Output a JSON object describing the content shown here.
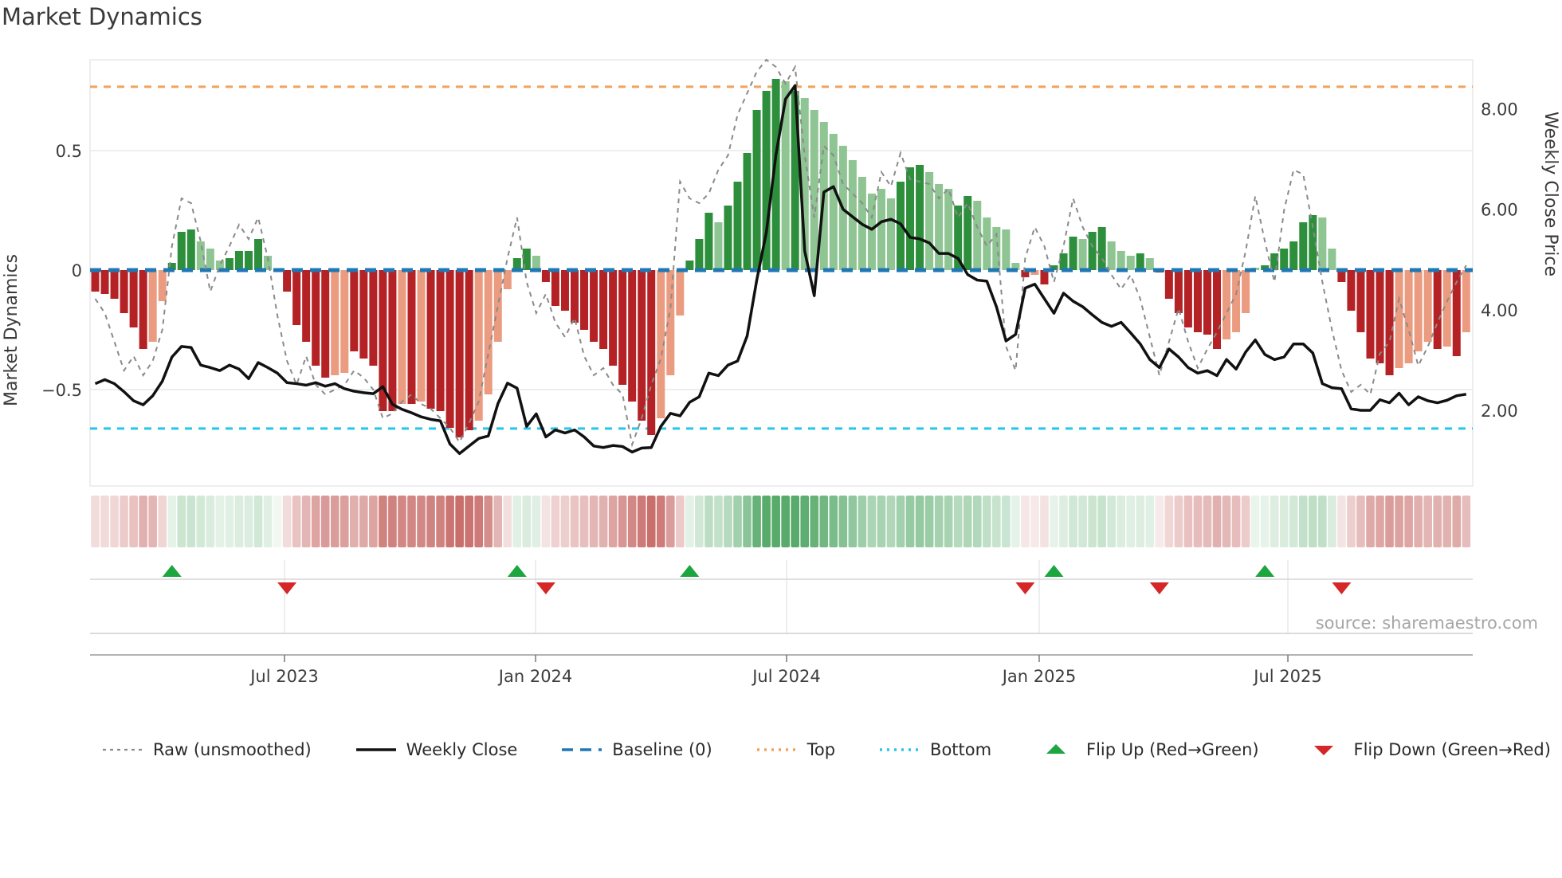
{
  "chart_data": {
    "type": "bar",
    "title": "Market Dynamics",
    "source_note": "source: sharemaestro.com",
    "frequency": "weekly",
    "left_axis": {
      "label": "Market Dynamics",
      "ticks": [
        {
          "label": "0.5",
          "value": 0.5
        },
        {
          "label": "0",
          "value": 0.0
        },
        {
          "label": "−0.5",
          "value": -0.5
        }
      ],
      "ylim": [
        -0.9,
        0.88
      ],
      "grid": "horizontal"
    },
    "right_axis": {
      "label": "Weekly Close Price",
      "ticks": [
        {
          "label": "8.00",
          "value": 8.0
        },
        {
          "label": "6.00",
          "value": 6.0
        },
        {
          "label": "4.00",
          "value": 4.0
        },
        {
          "label": "2.00",
          "value": 2.0
        }
      ],
      "ylim": [
        0.5,
        8.97
      ]
    },
    "x_ticks": [
      {
        "label": "Jul 2023",
        "week": 19.74
      },
      {
        "label": "Jan 2024",
        "week": 45.93
      },
      {
        "label": "Jul 2024",
        "week": 72.11
      },
      {
        "label": "Jan 2025",
        "week": 98.46
      },
      {
        "label": "Jul 2025",
        "week": 124.4
      }
    ],
    "baseline": 0,
    "top_level": 0.767,
    "bottom_level": -0.663,
    "series": {
      "market_dynamics": [
        -0.09,
        -0.1,
        -0.12,
        -0.18,
        -0.24,
        -0.33,
        -0.3,
        -0.13,
        0.03,
        0.16,
        0.17,
        0.12,
        0.09,
        0.04,
        0.05,
        0.08,
        0.08,
        0.13,
        0.06,
        0.0,
        -0.09,
        -0.23,
        -0.3,
        -0.4,
        -0.45,
        -0.44,
        -0.43,
        -0.34,
        -0.37,
        -0.4,
        -0.59,
        -0.59,
        -0.56,
        -0.56,
        -0.55,
        -0.58,
        -0.59,
        -0.66,
        -0.7,
        -0.67,
        -0.63,
        -0.52,
        -0.3,
        -0.08,
        0.05,
        0.09,
        0.06,
        -0.05,
        -0.15,
        -0.17,
        -0.22,
        -0.25,
        -0.3,
        -0.33,
        -0.4,
        -0.48,
        -0.55,
        -0.63,
        -0.69,
        -0.62,
        -0.44,
        -0.19,
        0.04,
        0.13,
        0.24,
        0.2,
        0.27,
        0.37,
        0.49,
        0.67,
        0.75,
        0.8,
        0.79,
        0.75,
        0.72,
        0.67,
        0.62,
        0.57,
        0.52,
        0.46,
        0.39,
        0.32,
        0.34,
        0.3,
        0.37,
        0.43,
        0.44,
        0.41,
        0.36,
        0.34,
        0.27,
        0.31,
        0.29,
        0.22,
        0.18,
        0.17,
        0.03,
        -0.03,
        -0.02,
        -0.06,
        0.02,
        0.07,
        0.14,
        0.13,
        0.16,
        0.18,
        0.12,
        0.08,
        0.06,
        0.07,
        0.05,
        -0.01,
        -0.12,
        -0.18,
        -0.24,
        -0.26,
        -0.27,
        -0.33,
        -0.29,
        -0.26,
        -0.18,
        0.01,
        0.02,
        0.07,
        0.09,
        0.12,
        0.2,
        0.23,
        0.22,
        0.09,
        -0.05,
        -0.17,
        -0.26,
        -0.37,
        -0.39,
        -0.44,
        -0.41,
        -0.39,
        -0.34,
        -0.3,
        -0.33,
        -0.32,
        -0.36,
        -0.26
      ],
      "bar_colors": [
        "dr",
        "dr",
        "dr",
        "dr",
        "dr",
        "dr",
        "sr",
        "sr",
        "dg",
        "dg",
        "dg",
        "lg",
        "lg",
        "lg",
        "dg",
        "dg",
        "dg",
        "dg",
        "lg",
        "lg",
        "dr",
        "dr",
        "dr",
        "dr",
        "dr",
        "sr",
        "sr",
        "dr",
        "dr",
        "dr",
        "dr",
        "dr",
        "sr",
        "dr",
        "sr",
        "dr",
        "dr",
        "dr",
        "dr",
        "dr",
        "sr",
        "sr",
        "sr",
        "sr",
        "dg",
        "dg",
        "lg",
        "dr",
        "dr",
        "dr",
        "dr",
        "dr",
        "dr",
        "dr",
        "dr",
        "dr",
        "dr",
        "dr",
        "dr",
        "sr",
        "sr",
        "sr",
        "dg",
        "dg",
        "dg",
        "lg",
        "dg",
        "dg",
        "dg",
        "dg",
        "dg",
        "dg",
        "lg",
        "dg",
        "lg",
        "lg",
        "lg",
        "lg",
        "lg",
        "lg",
        "lg",
        "lg",
        "lg",
        "lg",
        "dg",
        "dg",
        "dg",
        "lg",
        "lg",
        "lg",
        "dg",
        "dg",
        "lg",
        "lg",
        "lg",
        "lg",
        "lg",
        "dr",
        "sr",
        "dr",
        "dg",
        "dg",
        "dg",
        "lg",
        "dg",
        "dg",
        "lg",
        "lg",
        "lg",
        "dg",
        "lg",
        "dr",
        "dr",
        "dr",
        "dr",
        "dr",
        "dr",
        "dr",
        "sr",
        "sr",
        "sr",
        "lg",
        "dg",
        "dg",
        "dg",
        "dg",
        "dg",
        "dg",
        "lg",
        "lg",
        "dr",
        "dr",
        "dr",
        "dr",
        "dr",
        "dr",
        "sr",
        "sr",
        "sr",
        "sr",
        "dr",
        "sr",
        "dr",
        "sr"
      ],
      "weekly_close": [
        2.53,
        2.61,
        2.53,
        2.37,
        2.19,
        2.11,
        2.29,
        2.58,
        3.06,
        3.27,
        3.25,
        2.9,
        2.85,
        2.79,
        2.9,
        2.82,
        2.63,
        2.95,
        2.85,
        2.74,
        2.55,
        2.53,
        2.5,
        2.55,
        2.48,
        2.53,
        2.43,
        2.38,
        2.35,
        2.33,
        2.47,
        2.12,
        2.02,
        1.95,
        1.87,
        1.82,
        1.79,
        1.33,
        1.14,
        1.29,
        1.44,
        1.49,
        2.13,
        2.54,
        2.44,
        1.68,
        1.93,
        1.47,
        1.61,
        1.55,
        1.61,
        1.47,
        1.29,
        1.26,
        1.3,
        1.28,
        1.17,
        1.25,
        1.26,
        1.68,
        1.94,
        1.89,
        2.16,
        2.27,
        2.74,
        2.69,
        2.9,
        2.98,
        3.48,
        4.59,
        5.54,
        7.08,
        8.19,
        8.46,
        5.17,
        4.28,
        6.34,
        6.45,
        6.0,
        5.85,
        5.7,
        5.6,
        5.75,
        5.8,
        5.71,
        5.44,
        5.41,
        5.33,
        5.12,
        5.12,
        5.02,
        4.7,
        4.59,
        4.57,
        4.06,
        3.38,
        3.51,
        4.43,
        4.51,
        4.22,
        3.93,
        4.33,
        4.17,
        4.06,
        3.9,
        3.75,
        3.67,
        3.75,
        3.54,
        3.32,
        3.01,
        2.85,
        3.22,
        3.06,
        2.85,
        2.74,
        2.79,
        2.69,
        3.01,
        2.82,
        3.16,
        3.4,
        3.11,
        3.01,
        3.06,
        3.32,
        3.32,
        3.14,
        2.53,
        2.45,
        2.43,
        2.03,
        2.0,
        2.0,
        2.21,
        2.15,
        2.34,
        2.11,
        2.27,
        2.19,
        2.15,
        2.2,
        2.29,
        2.32
      ],
      "raw_unsmoothed": [
        -0.12,
        -0.18,
        -0.3,
        -0.42,
        -0.36,
        -0.44,
        -0.38,
        -0.25,
        0.1,
        0.3,
        0.28,
        0.12,
        -0.09,
        0.02,
        0.1,
        0.19,
        0.13,
        0.22,
        0.05,
        -0.19,
        -0.38,
        -0.48,
        -0.36,
        -0.48,
        -0.52,
        -0.5,
        -0.48,
        -0.42,
        -0.45,
        -0.5,
        -0.62,
        -0.6,
        -0.55,
        -0.52,
        -0.56,
        -0.58,
        -0.62,
        -0.66,
        -0.72,
        -0.64,
        -0.55,
        -0.35,
        -0.15,
        0.05,
        0.22,
        -0.05,
        -0.18,
        -0.1,
        -0.22,
        -0.28,
        -0.2,
        -0.36,
        -0.44,
        -0.41,
        -0.48,
        -0.52,
        -0.73,
        -0.62,
        -0.48,
        -0.37,
        -0.16,
        0.37,
        0.3,
        0.28,
        0.32,
        0.42,
        0.48,
        0.65,
        0.74,
        0.83,
        0.88,
        0.85,
        0.78,
        0.85,
        0.48,
        0.22,
        0.52,
        0.48,
        0.36,
        0.32,
        0.28,
        0.22,
        0.41,
        0.35,
        0.49,
        0.38,
        0.37,
        0.36,
        0.3,
        0.34,
        0.22,
        0.28,
        0.18,
        0.1,
        0.15,
        -0.32,
        -0.42,
        0.05,
        0.18,
        0.1,
        -0.05,
        0.1,
        0.3,
        0.18,
        0.1,
        0.05,
        -0.02,
        -0.08,
        -0.02,
        -0.12,
        -0.28,
        -0.44,
        -0.3,
        -0.16,
        -0.3,
        -0.41,
        -0.33,
        -0.26,
        -0.18,
        -0.1,
        0.08,
        0.31,
        0.12,
        -0.05,
        0.25,
        0.42,
        0.4,
        0.18,
        -0.05,
        -0.25,
        -0.42,
        -0.51,
        -0.48,
        -0.52,
        -0.35,
        -0.3,
        -0.12,
        -0.25,
        -0.4,
        -0.32,
        -0.22,
        -0.13,
        -0.05,
        0.02
      ]
    },
    "flip_up_weeks": [
      8,
      44,
      62,
      100,
      122
    ],
    "flip_down_weeks": [
      20,
      47,
      97,
      111,
      130
    ],
    "legend": [
      {
        "label": "Raw (unsmoothed)",
        "swatch": "raw"
      },
      {
        "label": "Weekly Close",
        "swatch": "close"
      },
      {
        "label": "Baseline (0)",
        "swatch": "baseline"
      },
      {
        "label": "Top",
        "swatch": "top"
      },
      {
        "label": "Bottom",
        "swatch": "bottom"
      },
      {
        "label": "Flip Up (Red→Green)",
        "swatch": "flip_up"
      },
      {
        "label": "Flip Down (Green→Red)",
        "swatch": "flip_down"
      }
    ],
    "colors": {
      "dr": "#b42225",
      "sr": "#eb9b7f",
      "dg": "#2d8f3c",
      "lg": "#8fc493",
      "baseline": "#1f77b4",
      "top": "#f0a35f",
      "bottom": "#27c6e8",
      "close": "#111111",
      "raw": "#8a8a8a",
      "flip_up": "#1da53f",
      "flip_down": "#d62728",
      "heat_pos": "#33984b",
      "heat_neg": "#b8433f",
      "grid": "#e8e8ec",
      "spine": "#e2e2e6"
    }
  }
}
